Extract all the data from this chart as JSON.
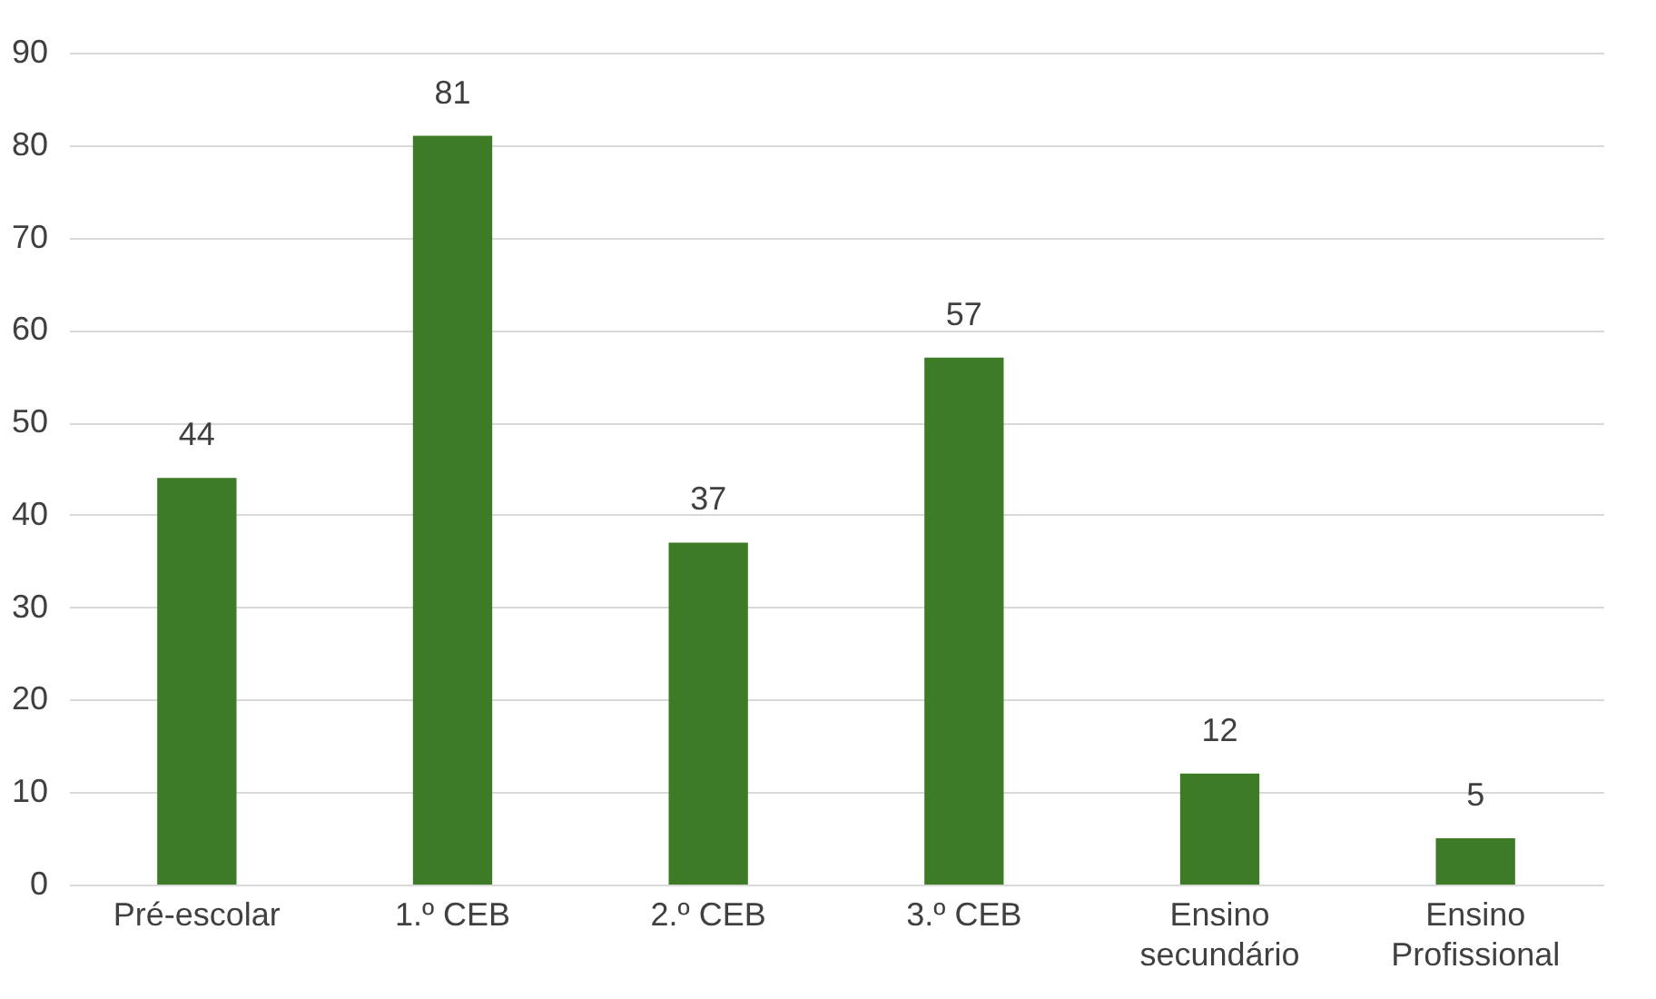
{
  "chart_data": {
    "type": "bar",
    "categories": [
      "Pré-escolar",
      "1.º CEB",
      "2.º CEB",
      "3.º CEB",
      "Ensino secundário",
      "Ensino Profissional"
    ],
    "values": [
      44,
      81,
      37,
      57,
      12,
      5
    ],
    "color": "#3e7b27",
    "ylim": [
      0,
      90
    ],
    "yticks": [
      0,
      10,
      20,
      30,
      40,
      50,
      60,
      70,
      80,
      90
    ],
    "grid": "y",
    "data_labels": true
  }
}
